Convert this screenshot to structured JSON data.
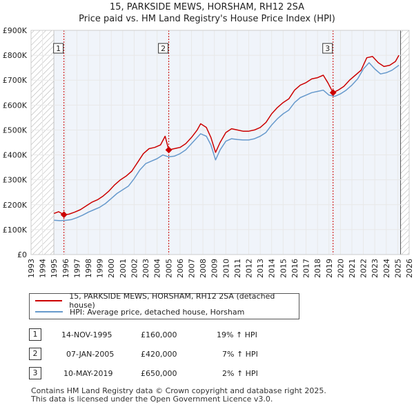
{
  "title": {
    "line1": "15, PARKSIDE MEWS, HORSHAM, RH12 2SA",
    "line2": "Price paid vs. HM Land Registry's House Price Index (HPI)"
  },
  "colors": {
    "price_line": "#cc0000",
    "hpi_line": "#6699cc",
    "marker_border": "#cc0000",
    "hatch": "#aaaaaa",
    "shade": "#dde6f3"
  },
  "legend": {
    "items": [
      {
        "label": "15, PARKSIDE MEWS, HORSHAM, RH12 2SA (detached house)",
        "color": "#cc0000"
      },
      {
        "label": "HPI: Average price, detached house, Horsham",
        "color": "#6699cc"
      }
    ]
  },
  "transactions": [
    {
      "num": "1",
      "date": "14-NOV-1995",
      "price": "£160,000",
      "hpi": "19% ↑ HPI"
    },
    {
      "num": "2",
      "date": "07-JAN-2005",
      "price": "£420,000",
      "hpi": "7% ↑ HPI"
    },
    {
      "num": "3",
      "date": "10-MAY-2019",
      "price": "£650,000",
      "hpi": "2% ↑ HPI"
    }
  ],
  "footer": {
    "line1": "Contains HM Land Registry data © Crown copyright and database right 2025.",
    "line2": "This data is licensed under the Open Government Licence v3.0."
  },
  "chart_data": {
    "type": "line",
    "xlim": [
      1993,
      2026
    ],
    "ylim": [
      0,
      900000
    ],
    "x_ticks": [
      "1993",
      "1994",
      "1995",
      "1996",
      "1997",
      "1998",
      "1999",
      "2000",
      "2001",
      "2002",
      "2003",
      "2004",
      "2005",
      "2006",
      "2007",
      "2008",
      "2009",
      "2010",
      "2011",
      "2012",
      "2013",
      "2014",
      "2015",
      "2016",
      "2017",
      "2018",
      "2019",
      "2020",
      "2021",
      "2022",
      "2023",
      "2024",
      "2025",
      "2026"
    ],
    "y_ticks": [
      {
        "value": 0,
        "label": "£0"
      },
      {
        "value": 100000,
        "label": "£100K"
      },
      {
        "value": 200000,
        "label": "£200K"
      },
      {
        "value": 300000,
        "label": "£300K"
      },
      {
        "value": 400000,
        "label": "£400K"
      },
      {
        "value": 500000,
        "label": "£500K"
      },
      {
        "value": 600000,
        "label": "£600K"
      },
      {
        "value": 700000,
        "label": "£700K"
      },
      {
        "value": 800000,
        "label": "£800K"
      },
      {
        "value": 900000,
        "label": "£900K"
      }
    ],
    "hatched_ranges": [
      [
        1993,
        1995.0
      ],
      [
        2025.25,
        2026
      ]
    ],
    "shaded_ranges": [
      [
        1995.0,
        2025.25
      ]
    ],
    "sales": [
      {
        "label": "1",
        "x": 1995.87,
        "y": 160000
      },
      {
        "label": "2",
        "x": 2005.02,
        "y": 420000
      },
      {
        "label": "3",
        "x": 2019.36,
        "y": 650000
      }
    ],
    "series": [
      {
        "name": "15, PARKSIDE MEWS, HORSHAM, RH12 2SA (detached house)",
        "color": "#cc0000",
        "points": [
          [
            1995.0,
            165000
          ],
          [
            1995.4,
            172000
          ],
          [
            1995.87,
            160000
          ],
          [
            1996.3,
            162000
          ],
          [
            1996.8,
            170000
          ],
          [
            1997.3,
            180000
          ],
          [
            1997.8,
            195000
          ],
          [
            1998.3,
            210000
          ],
          [
            1998.8,
            220000
          ],
          [
            1999.3,
            235000
          ],
          [
            1999.8,
            255000
          ],
          [
            2000.3,
            280000
          ],
          [
            2000.8,
            300000
          ],
          [
            2001.3,
            315000
          ],
          [
            2001.8,
            335000
          ],
          [
            2002.3,
            370000
          ],
          [
            2002.8,
            405000
          ],
          [
            2003.3,
            425000
          ],
          [
            2003.8,
            430000
          ],
          [
            2004.3,
            440000
          ],
          [
            2004.7,
            475000
          ],
          [
            2005.02,
            420000
          ],
          [
            2005.5,
            425000
          ],
          [
            2006.0,
            430000
          ],
          [
            2006.5,
            445000
          ],
          [
            2007.0,
            470000
          ],
          [
            2007.5,
            500000
          ],
          [
            2007.8,
            525000
          ],
          [
            2008.3,
            510000
          ],
          [
            2008.7,
            470000
          ],
          [
            2009.1,
            410000
          ],
          [
            2009.5,
            450000
          ],
          [
            2010.0,
            490000
          ],
          [
            2010.5,
            505000
          ],
          [
            2011.0,
            500000
          ],
          [
            2011.5,
            495000
          ],
          [
            2012.0,
            495000
          ],
          [
            2012.5,
            500000
          ],
          [
            2013.0,
            510000
          ],
          [
            2013.5,
            530000
          ],
          [
            2014.0,
            565000
          ],
          [
            2014.5,
            590000
          ],
          [
            2015.0,
            610000
          ],
          [
            2015.5,
            625000
          ],
          [
            2016.0,
            660000
          ],
          [
            2016.5,
            680000
          ],
          [
            2017.0,
            690000
          ],
          [
            2017.5,
            705000
          ],
          [
            2018.0,
            710000
          ],
          [
            2018.5,
            720000
          ],
          [
            2018.9,
            690000
          ],
          [
            2019.36,
            650000
          ],
          [
            2019.8,
            660000
          ],
          [
            2020.3,
            675000
          ],
          [
            2020.8,
            700000
          ],
          [
            2021.3,
            720000
          ],
          [
            2021.8,
            740000
          ],
          [
            2022.3,
            790000
          ],
          [
            2022.8,
            795000
          ],
          [
            2023.3,
            770000
          ],
          [
            2023.8,
            755000
          ],
          [
            2024.3,
            760000
          ],
          [
            2024.8,
            775000
          ],
          [
            2025.1,
            800000
          ]
        ]
      },
      {
        "name": "HPI: Average price, detached house, Horsham",
        "color": "#6699cc",
        "points": [
          [
            1995.0,
            138000
          ],
          [
            1995.5,
            136000
          ],
          [
            1996.0,
            137000
          ],
          [
            1996.5,
            140000
          ],
          [
            1997.0,
            148000
          ],
          [
            1997.5,
            158000
          ],
          [
            1998.0,
            170000
          ],
          [
            1998.5,
            180000
          ],
          [
            1999.0,
            190000
          ],
          [
            1999.5,
            205000
          ],
          [
            2000.0,
            225000
          ],
          [
            2000.5,
            245000
          ],
          [
            2001.0,
            260000
          ],
          [
            2001.5,
            275000
          ],
          [
            2002.0,
            305000
          ],
          [
            2002.5,
            340000
          ],
          [
            2003.0,
            365000
          ],
          [
            2003.5,
            375000
          ],
          [
            2004.0,
            385000
          ],
          [
            2004.5,
            400000
          ],
          [
            2005.0,
            392000
          ],
          [
            2005.5,
            395000
          ],
          [
            2006.0,
            405000
          ],
          [
            2006.5,
            420000
          ],
          [
            2007.0,
            445000
          ],
          [
            2007.5,
            470000
          ],
          [
            2007.8,
            485000
          ],
          [
            2008.3,
            475000
          ],
          [
            2008.7,
            440000
          ],
          [
            2009.1,
            380000
          ],
          [
            2009.5,
            420000
          ],
          [
            2010.0,
            455000
          ],
          [
            2010.5,
            465000
          ],
          [
            2011.0,
            462000
          ],
          [
            2011.5,
            460000
          ],
          [
            2012.0,
            460000
          ],
          [
            2012.5,
            465000
          ],
          [
            2013.0,
            475000
          ],
          [
            2013.5,
            490000
          ],
          [
            2014.0,
            520000
          ],
          [
            2014.5,
            545000
          ],
          [
            2015.0,
            565000
          ],
          [
            2015.5,
            580000
          ],
          [
            2016.0,
            610000
          ],
          [
            2016.5,
            630000
          ],
          [
            2017.0,
            640000
          ],
          [
            2017.5,
            650000
          ],
          [
            2018.0,
            655000
          ],
          [
            2018.5,
            660000
          ],
          [
            2019.0,
            640000
          ],
          [
            2019.5,
            635000
          ],
          [
            2020.0,
            645000
          ],
          [
            2020.5,
            660000
          ],
          [
            2021.0,
            680000
          ],
          [
            2021.5,
            705000
          ],
          [
            2022.0,
            745000
          ],
          [
            2022.5,
            770000
          ],
          [
            2023.0,
            745000
          ],
          [
            2023.5,
            725000
          ],
          [
            2024.0,
            730000
          ],
          [
            2024.5,
            740000
          ],
          [
            2025.1,
            760000
          ]
        ]
      }
    ]
  }
}
